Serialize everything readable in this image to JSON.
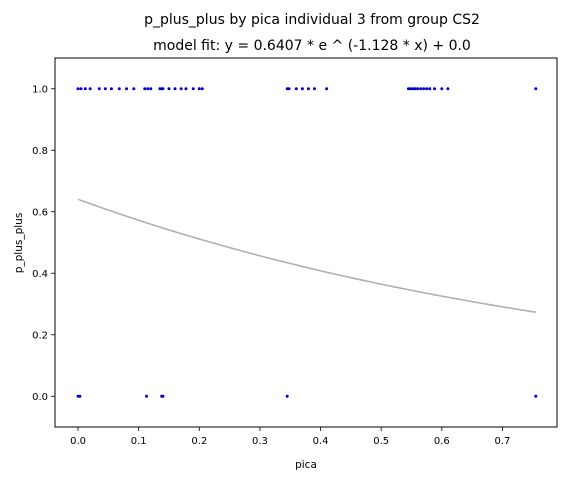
{
  "chart_data": {
    "type": "scatter",
    "title": "p_plus_plus by pica individual 3 from group CS2",
    "subtitle": "model fit: y = 0.6407 * e ^ (-1.128 * x) + 0.0",
    "xlabel": "pica",
    "ylabel": "p_plus_plus",
    "xlim": [
      -0.038,
      0.79
    ],
    "ylim": [
      -0.1,
      1.1
    ],
    "xticks": [
      "0.0",
      "0.1",
      "0.2",
      "0.3",
      "0.4",
      "0.5",
      "0.6",
      "0.7"
    ],
    "yticks": [
      "0.0",
      "0.2",
      "0.4",
      "0.6",
      "0.8",
      "1.0"
    ],
    "grid": false,
    "legend": "none",
    "series": [
      {
        "color": "#0000cc",
        "points": [
          {
            "x": 0.0,
            "y": 1
          },
          {
            "x": 0.005,
            "y": 1
          },
          {
            "x": 0.012,
            "y": 1
          },
          {
            "x": 0.02,
            "y": 1
          },
          {
            "x": 0.035,
            "y": 1
          },
          {
            "x": 0.045,
            "y": 1
          },
          {
            "x": 0.055,
            "y": 1
          },
          {
            "x": 0.068,
            "y": 1
          },
          {
            "x": 0.08,
            "y": 1
          },
          {
            "x": 0.092,
            "y": 1
          },
          {
            "x": 0.11,
            "y": 1
          },
          {
            "x": 0.115,
            "y": 1
          },
          {
            "x": 0.12,
            "y": 1
          },
          {
            "x": 0.135,
            "y": 1
          },
          {
            "x": 0.138,
            "y": 1
          },
          {
            "x": 0.14,
            "y": 1
          },
          {
            "x": 0.15,
            "y": 1
          },
          {
            "x": 0.16,
            "y": 1
          },
          {
            "x": 0.17,
            "y": 1
          },
          {
            "x": 0.178,
            "y": 1
          },
          {
            "x": 0.19,
            "y": 1
          },
          {
            "x": 0.2,
            "y": 1
          },
          {
            "x": 0.205,
            "y": 1
          },
          {
            "x": 0.345,
            "y": 1
          },
          {
            "x": 0.348,
            "y": 1
          },
          {
            "x": 0.36,
            "y": 1
          },
          {
            "x": 0.37,
            "y": 1
          },
          {
            "x": 0.38,
            "y": 1
          },
          {
            "x": 0.39,
            "y": 1
          },
          {
            "x": 0.41,
            "y": 1
          },
          {
            "x": 0.545,
            "y": 1
          },
          {
            "x": 0.548,
            "y": 1
          },
          {
            "x": 0.552,
            "y": 1
          },
          {
            "x": 0.556,
            "y": 1
          },
          {
            "x": 0.56,
            "y": 1
          },
          {
            "x": 0.565,
            "y": 1
          },
          {
            "x": 0.57,
            "y": 1
          },
          {
            "x": 0.575,
            "y": 1
          },
          {
            "x": 0.58,
            "y": 1
          },
          {
            "x": 0.588,
            "y": 1
          },
          {
            "x": 0.6,
            "y": 1
          },
          {
            "x": 0.61,
            "y": 1
          },
          {
            "x": 0.755,
            "y": 1
          },
          {
            "x": 0.0,
            "y": 0
          },
          {
            "x": 0.003,
            "y": 0
          },
          {
            "x": 0.113,
            "y": 0
          },
          {
            "x": 0.138,
            "y": 0
          },
          {
            "x": 0.14,
            "y": 0
          },
          {
            "x": 0.345,
            "y": 0
          },
          {
            "x": 0.755,
            "y": 0
          }
        ]
      }
    ],
    "fit_curve": {
      "color": "#b0b0b0",
      "a": 0.6407,
      "b": -1.128,
      "c": 0.0,
      "x_range": [
        0.0,
        0.755
      ]
    }
  }
}
